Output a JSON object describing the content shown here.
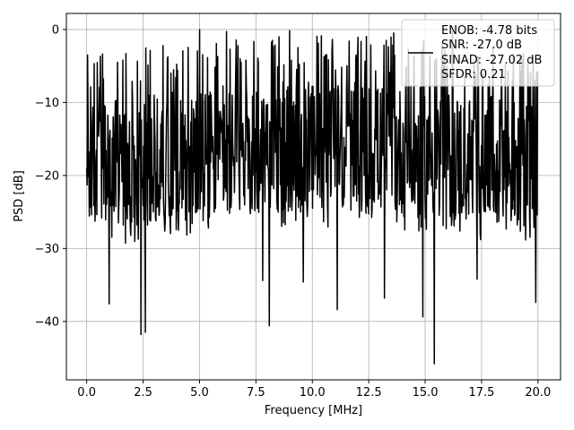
{
  "chart_data": {
    "type": "line",
    "xlabel": "Frequency [MHz]",
    "ylabel": "PSD [dB]",
    "xlim": [
      -0.9,
      21.0
    ],
    "ylim": [
      -48.0,
      2.2
    ],
    "xticks": [
      0.0,
      2.5,
      5.0,
      7.5,
      10.0,
      12.5,
      15.0,
      17.5,
      20.0
    ],
    "xtick_labels": [
      "0.0",
      "2.5",
      "5.0",
      "7.5",
      "10.0",
      "12.5",
      "15.0",
      "17.5",
      "20.0"
    ],
    "yticks": [
      0,
      -10,
      -20,
      -30,
      -40
    ],
    "ytick_labels": [
      "0",
      "−10",
      "−20",
      "−30",
      "−40"
    ],
    "grid": true,
    "series": [
      {
        "color": "#000000",
        "x_range": [
          0.0,
          20.0
        ],
        "points": 1024,
        "noise_floor_db": -17.0,
        "upper_envelope_db": -5.0,
        "lower_envelope_db": -25.0,
        "peak_db": 0.0,
        "deep_notches": [
          {
            "x": 2.4,
            "y": -41.8
          },
          {
            "x": 2.6,
            "y": -41.5
          },
          {
            "x": 1.0,
            "y": -37.6
          },
          {
            "x": 8.1,
            "y": -40.6
          },
          {
            "x": 9.6,
            "y": -34.6
          },
          {
            "x": 11.1,
            "y": -38.4
          },
          {
            "x": 13.2,
            "y": -36.8
          },
          {
            "x": 15.4,
            "y": -45.8
          },
          {
            "x": 14.9,
            "y": -39.4
          },
          {
            "x": 19.9,
            "y": -37.4
          },
          {
            "x": 7.8,
            "y": -34.4
          },
          {
            "x": 17.3,
            "y": -34.2
          }
        ]
      }
    ],
    "legend": {
      "placement": "top-right",
      "entries": [
        "ENOB: -4.78 bits",
        "SNR: -27.0 dB",
        "SINAD: -27.02 dB",
        "SFDR: 0.21"
      ]
    }
  }
}
